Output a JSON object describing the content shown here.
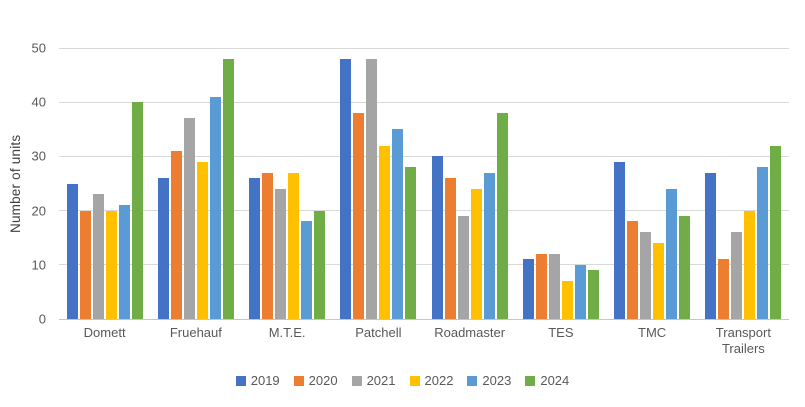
{
  "chart_data": {
    "type": "bar",
    "title": "",
    "xlabel": "",
    "ylabel": "Number of units",
    "ylim": [
      0,
      50
    ],
    "yticks": [
      0,
      10,
      20,
      30,
      40,
      50
    ],
    "grid": true,
    "legend_position": "bottom",
    "categories": [
      "Domett",
      "Fruehauf",
      "M.T.E.",
      "Patchell",
      "Roadmaster",
      "TES",
      "TMC",
      "Transport Trailers"
    ],
    "series": [
      {
        "name": "2019",
        "color": "#4472C4",
        "values": [
          25,
          26,
          26,
          48,
          30,
          11,
          29,
          27
        ]
      },
      {
        "name": "2020",
        "color": "#ED7D31",
        "values": [
          20,
          31,
          27,
          38,
          26,
          12,
          18,
          11
        ]
      },
      {
        "name": "2021",
        "color": "#A5A5A5",
        "values": [
          23,
          37,
          24,
          48,
          19,
          12,
          16,
          16
        ]
      },
      {
        "name": "2022",
        "color": "#FFC000",
        "values": [
          20,
          29,
          27,
          32,
          24,
          7,
          14,
          20
        ]
      },
      {
        "name": "2023",
        "color": "#5B9BD5",
        "values": [
          21,
          41,
          18,
          35,
          27,
          10,
          24,
          28
        ]
      },
      {
        "name": "2024",
        "color": "#70AD47",
        "values": [
          40,
          48,
          20,
          28,
          38,
          9,
          19,
          32
        ]
      }
    ]
  }
}
